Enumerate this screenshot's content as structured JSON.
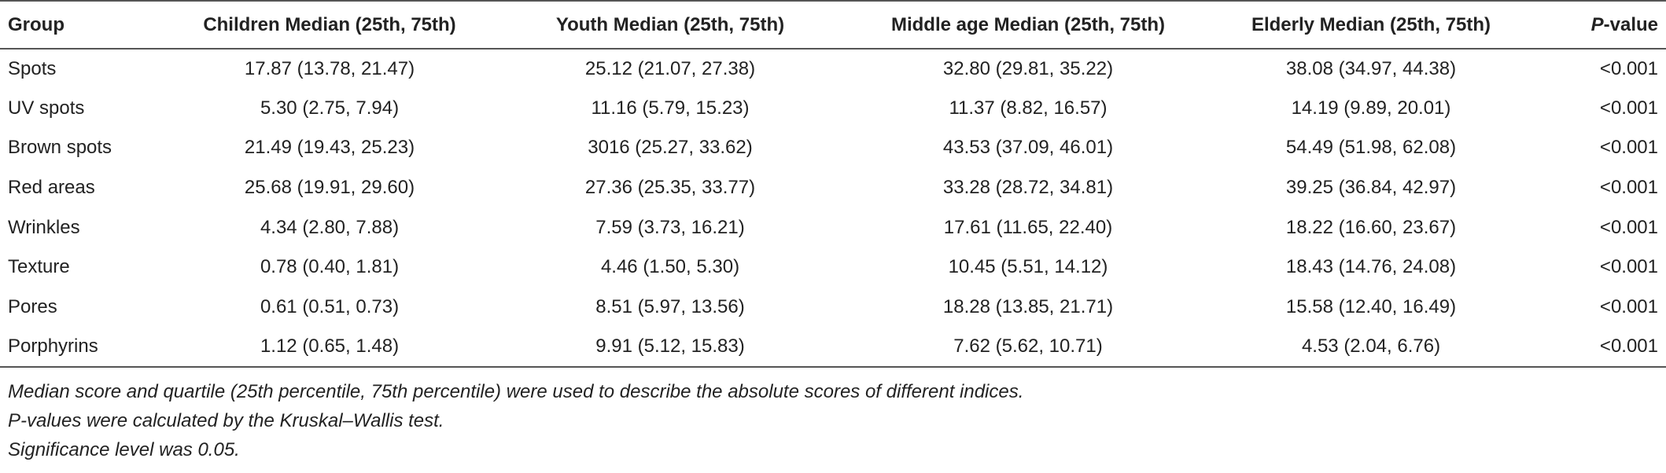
{
  "table": {
    "header": [
      "Group",
      "Children Median (25th, 75th)",
      "Youth Median (25th, 75th)",
      "Middle age Median (25th, 75th)",
      "Elderly Median (25th, 75th)",
      "P-value"
    ],
    "rows": [
      [
        "Spots",
        "17.87 (13.78, 21.47)",
        "25.12 (21.07, 27.38)",
        "32.80 (29.81, 35.22)",
        "38.08 (34.97, 44.38)",
        "<0.001"
      ],
      [
        "UV spots",
        "5.30 (2.75, 7.94)",
        "11.16 (5.79, 15.23)",
        "11.37 (8.82, 16.57)",
        "14.19 (9.89, 20.01)",
        "<0.001"
      ],
      [
        "Brown spots",
        "21.49 (19.43, 25.23)",
        "3016 (25.27, 33.62)",
        "43.53 (37.09, 46.01)",
        "54.49 (51.98, 62.08)",
        "<0.001"
      ],
      [
        "Red areas",
        "25.68 (19.91, 29.60)",
        "27.36 (25.35, 33.77)",
        "33.28 (28.72, 34.81)",
        "39.25 (36.84, 42.97)",
        "<0.001"
      ],
      [
        "Wrinkles",
        "4.34 (2.80, 7.88)",
        "7.59 (3.73, 16.21)",
        "17.61 (11.65, 22.40)",
        "18.22 (16.60, 23.67)",
        "<0.001"
      ],
      [
        "Texture",
        "0.78 (0.40, 1.81)",
        "4.46 (1.50, 5.30)",
        "10.45 (5.51, 14.12)",
        "18.43 (14.76, 24.08)",
        "<0.001"
      ],
      [
        "Pores",
        "0.61 (0.51, 0.73)",
        "8.51 (5.97, 13.56)",
        "18.28 (13.85, 21.71)",
        "15.58 (12.40, 16.49)",
        "<0.001"
      ],
      [
        "Porphyrins",
        "1.12 (0.65, 1.48)",
        "9.91 (5.12, 15.83)",
        "7.62 (5.62, 10.71)",
        "4.53 (2.04, 6.76)",
        "<0.001"
      ]
    ],
    "footnotes": [
      "Median score and quartile (25th percentile, 75th percentile) were used to describe the absolute scores of different indices.",
      "P-values were calculated by the Kruskal–Wallis test.",
      "Significance level was 0.05."
    ]
  }
}
